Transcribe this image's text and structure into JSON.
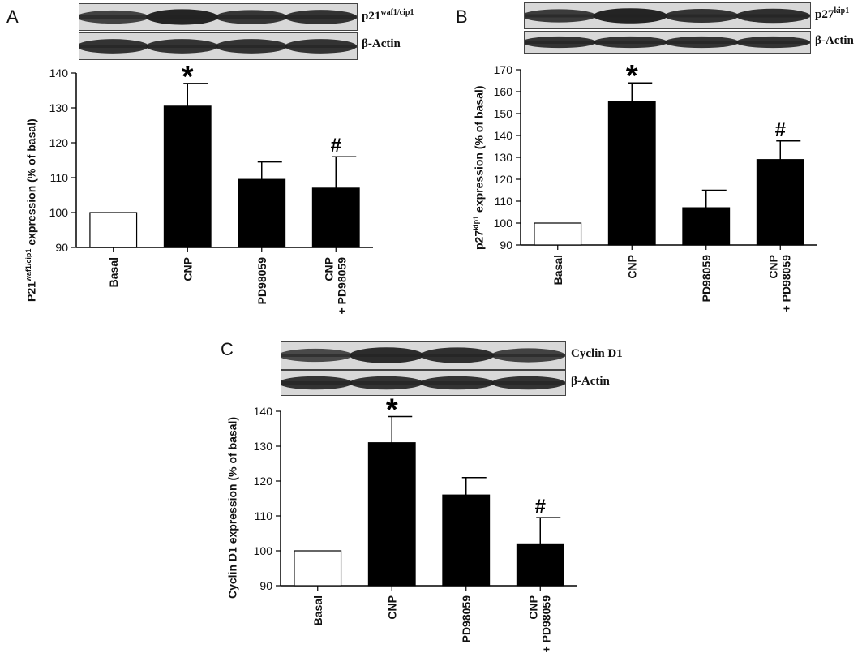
{
  "panels": [
    {
      "letter": "A",
      "blots": [
        {
          "label_main": "p21",
          "label_sup": "waf1/cip1"
        },
        {
          "label_main": "β-Actin",
          "label_sup": ""
        }
      ],
      "ylabel_pre": "P21",
      "ylabel_sup": "waf1/cip1",
      "ylabel_post": " expression (% of basal)"
    },
    {
      "letter": "B",
      "blots": [
        {
          "label_main": "p27",
          "label_sup": "kip1"
        },
        {
          "label_main": "β-Actin",
          "label_sup": ""
        }
      ],
      "ylabel_pre": "p27",
      "ylabel_sup": "kip1",
      "ylabel_post": " expression (% of basal)"
    },
    {
      "letter": "C",
      "blots": [
        {
          "label_main": "Cyclin D1",
          "label_sup": ""
        },
        {
          "label_main": "β-Actin",
          "label_sup": ""
        }
      ],
      "ylabel_pre": "Cyclin D1 expression (% of basal)",
      "ylabel_sup": "",
      "ylabel_post": ""
    }
  ],
  "chart_data": [
    {
      "type": "bar",
      "categories": [
        "Basal",
        "CNP",
        "PD98059",
        "CNP + PD98059"
      ],
      "values": [
        100,
        130.5,
        109.5,
        107
      ],
      "errors": [
        0,
        6.5,
        5,
        9
      ],
      "annotations": [
        "",
        "*",
        "",
        "#"
      ],
      "ylim": [
        90,
        140
      ],
      "yticks": [
        90,
        100,
        110,
        120,
        130,
        140
      ],
      "fills": [
        "#ffffff",
        "#000000",
        "#000000",
        "#000000"
      ]
    },
    {
      "type": "bar",
      "categories": [
        "Basal",
        "CNP",
        "PD98059",
        "CNP + PD98059"
      ],
      "values": [
        100,
        155.5,
        107,
        129
      ],
      "errors": [
        0,
        8.5,
        8,
        8.5
      ],
      "annotations": [
        "",
        "*",
        "",
        "#"
      ],
      "ylim": [
        90,
        170
      ],
      "yticks": [
        90,
        100,
        110,
        120,
        130,
        140,
        150,
        160,
        170
      ],
      "fills": [
        "#ffffff",
        "#000000",
        "#000000",
        "#000000"
      ]
    },
    {
      "type": "bar",
      "categories": [
        "Basal",
        "CNP",
        "PD98059",
        "CNP + PD98059"
      ],
      "values": [
        100,
        131,
        116,
        102
      ],
      "errors": [
        0,
        7.5,
        5,
        7.5
      ],
      "annotations": [
        "",
        "*",
        "",
        "#"
      ],
      "ylim": [
        90,
        140
      ],
      "yticks": [
        90,
        100,
        110,
        120,
        130,
        140
      ],
      "fills": [
        "#ffffff",
        "#000000",
        "#000000",
        "#000000"
      ]
    }
  ]
}
